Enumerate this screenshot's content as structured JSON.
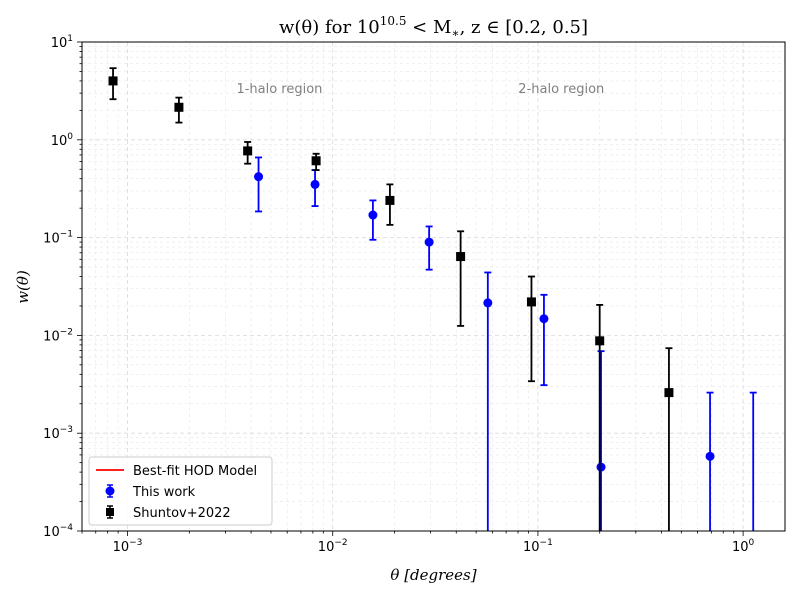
{
  "chart_data": {
    "type": "scatter",
    "title": "w(θ) for 10^10.5 < M*, z ∈ [0.2, 0.5]",
    "title_parts": {
      "a": "w(θ) for 10",
      "exp": "10.5",
      "b": " < M",
      "sub": "∗",
      "c": ", z ∈ [0.2, 0.5]"
    },
    "xlabel": "θ [degrees]",
    "ylabel": "w(θ)",
    "x_scale": "log",
    "y_scale": "log",
    "xlim": [
      0.0006,
      1.6
    ],
    "ylim": [
      0.0001,
      10
    ],
    "grid": true,
    "legend_placement": "lower-left",
    "x_ticks": [
      {
        "value": 0.001,
        "base": "10",
        "exp": "−3"
      },
      {
        "value": 0.01,
        "base": "10",
        "exp": "−2"
      },
      {
        "value": 0.1,
        "base": "10",
        "exp": "−1"
      },
      {
        "value": 1,
        "base": "10",
        "exp": "0"
      }
    ],
    "y_ticks": [
      {
        "value": 0.0001,
        "base": "10",
        "exp": "−4"
      },
      {
        "value": 0.001,
        "base": "10",
        "exp": "−3"
      },
      {
        "value": 0.01,
        "base": "10",
        "exp": "−2"
      },
      {
        "value": 0.1,
        "base": "10",
        "exp": "−1"
      },
      {
        "value": 1,
        "base": "10",
        "exp": "0"
      },
      {
        "value": 10,
        "base": "10",
        "exp": "1"
      }
    ],
    "annotations": [
      {
        "text": "1-halo region",
        "x": 0.0055,
        "y": 3.3
      },
      {
        "text": "2-halo region",
        "x": 0.13,
        "y": 3.3
      }
    ],
    "series": [
      {
        "name": "Best-fit HOD Model",
        "kind": "line",
        "color": "#ff0000",
        "points": []
      },
      {
        "name": "This work",
        "kind": "errorbar",
        "marker": "circle",
        "color": "#0000ff",
        "points": [
          {
            "x": 0.00435,
            "y": 0.42,
            "lo": 0.185,
            "hi": 0.66
          },
          {
            "x": 0.0082,
            "y": 0.35,
            "lo": 0.21,
            "hi": 0.49
          },
          {
            "x": 0.0157,
            "y": 0.17,
            "lo": 0.095,
            "hi": 0.24
          },
          {
            "x": 0.0295,
            "y": 0.09,
            "lo": 0.047,
            "hi": 0.13
          },
          {
            "x": 0.057,
            "y": 0.0215,
            "lo": 0.0001,
            "hi": 0.044
          },
          {
            "x": 0.107,
            "y": 0.0148,
            "lo": 0.0031,
            "hi": 0.026
          },
          {
            "x": 0.203,
            "y": 0.00045,
            "lo": 0.0001,
            "hi": 0.0069
          },
          {
            "x": 0.69,
            "y": 0.00058,
            "lo": 0.0001,
            "hi": 0.0026
          },
          {
            "x": 1.12,
            "y": null,
            "lo": 0.0001,
            "hi": 0.0026
          }
        ]
      },
      {
        "name": "Shuntov+2022",
        "kind": "errorbar",
        "marker": "square",
        "color": "#000000",
        "points": [
          {
            "x": 0.00085,
            "y": 4.0,
            "lo": 2.6,
            "hi": 5.4
          },
          {
            "x": 0.00178,
            "y": 2.15,
            "lo": 1.5,
            "hi": 2.7
          },
          {
            "x": 0.00385,
            "y": 0.77,
            "lo": 0.57,
            "hi": 0.95
          },
          {
            "x": 0.0083,
            "y": 0.61,
            "lo": 0.49,
            "hi": 0.72
          },
          {
            "x": 0.019,
            "y": 0.24,
            "lo": 0.135,
            "hi": 0.35
          },
          {
            "x": 0.042,
            "y": 0.064,
            "lo": 0.0125,
            "hi": 0.116
          },
          {
            "x": 0.093,
            "y": 0.022,
            "lo": 0.0034,
            "hi": 0.04
          },
          {
            "x": 0.2,
            "y": 0.0088,
            "lo": 0.0001,
            "hi": 0.0205
          },
          {
            "x": 0.435,
            "y": 0.0026,
            "lo": 0.0001,
            "hi": 0.0074
          }
        ]
      }
    ]
  }
}
